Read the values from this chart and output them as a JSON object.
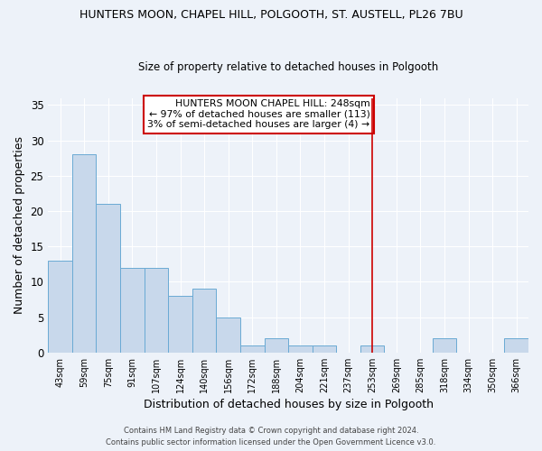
{
  "title": "HUNTERS MOON, CHAPEL HILL, POLGOOTH, ST. AUSTELL, PL26 7BU",
  "subtitle": "Size of property relative to detached houses in Polgooth",
  "xlabel": "Distribution of detached houses by size in Polgooth",
  "ylabel": "Number of detached properties",
  "categories": [
    "43sqm",
    "59sqm",
    "75sqm",
    "91sqm",
    "107sqm",
    "124sqm",
    "140sqm",
    "156sqm",
    "172sqm",
    "188sqm",
    "204sqm",
    "221sqm",
    "237sqm",
    "253sqm",
    "269sqm",
    "285sqm",
    "318sqm",
    "334sqm",
    "350sqm",
    "366sqm"
  ],
  "values": [
    13,
    28,
    21,
    12,
    12,
    8,
    9,
    5,
    1,
    2,
    1,
    1,
    0,
    1,
    0,
    0,
    2,
    0,
    0,
    2
  ],
  "bar_color": "#c8d8eb",
  "bar_edge_color": "#6aaad4",
  "background_color": "#edf2f9",
  "grid_color": "#ffffff",
  "red_line_x": 13.0,
  "annotation_text": "HUNTERS MOON CHAPEL HILL: 248sqm\n← 97% of detached houses are smaller (113)\n3% of semi-detached houses are larger (4) →",
  "annotation_box_color": "#ffffff",
  "annotation_box_edge_color": "#cc0000",
  "ylim": [
    0,
    36
  ],
  "yticks": [
    0,
    5,
    10,
    15,
    20,
    25,
    30,
    35
  ],
  "footer1": "Contains HM Land Registry data © Crown copyright and database right 2024.",
  "footer2": "Contains public sector information licensed under the Open Government Licence v3.0."
}
